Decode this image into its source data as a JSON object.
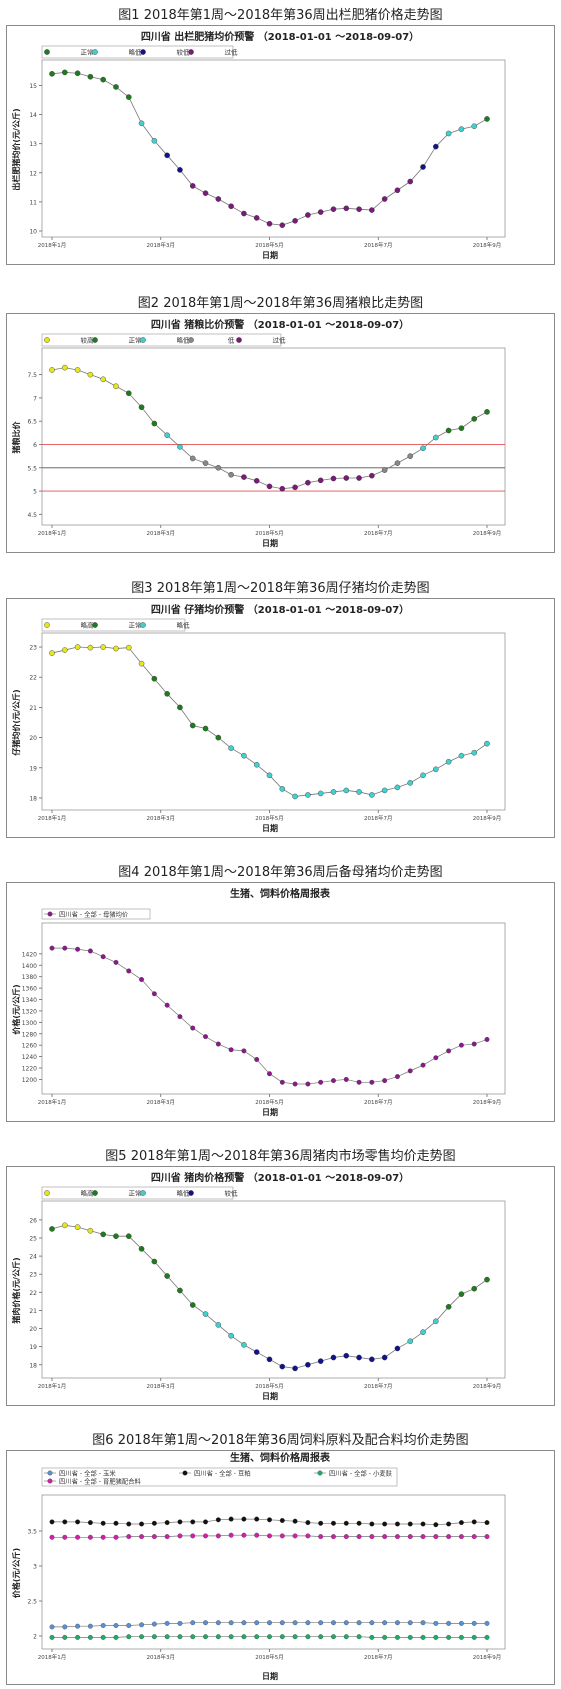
{
  "figures": [
    {
      "caption": "图1  2018年第1周～2018年第36周出栏肥猪价格走势图",
      "subtitle": "四川省 出栏肥猪均价预警 （2018-01-01 ～2018-09-07）"
    },
    {
      "caption": "图2  2018年第1周～2018年第36周猪粮比走势图",
      "subtitle": "四川省 猪粮比价预警 （2018-01-01 ～2018-09-07）"
    },
    {
      "caption": "图3  2018年第1周～2018年第36周仔猪均价走势图",
      "subtitle": "四川省 仔猪均价预警 （2018-01-01 ～2018-09-07）"
    },
    {
      "caption": "图4  2018年第1周～2018年第36周后备母猪均价走势图",
      "subtitle": "生猪、饲料价格周报表"
    },
    {
      "caption": "图5 2018年第1周～2018年第36周猪肉市场零售均价走势图",
      "subtitle": "四川省 猪肉价格预警 （2018-01-01 ～2018-09-07）"
    },
    {
      "caption": "图6  2018年第1周～2018年第36周饲料原料及配合料均价走势图",
      "subtitle": "生猪、饲料价格周报表"
    }
  ],
  "colors": {
    "正常": "#1e7b1e",
    "略低": "#40d0d0",
    "较低": "#12128c",
    "过低": "#7a1a7a",
    "较高": "#e6e61e",
    "略高": "#e6e61e",
    "母猪": "#8a1a8a",
    "玉米": "#5a8fd0",
    "豆粕": "#111111",
    "小麦麸": "#22aa66",
    "配合料": "#cc22aa",
    "line": "#777777",
    "redline": "#e05050",
    "grayline": "#555555"
  },
  "chart_data": [
    {
      "type": "line",
      "title": "四川省 出栏肥猪均价预警 （2018-01-01 ～2018-09-07）",
      "xlabel": "日期",
      "ylabel": "出栏肥猪均价(元/公斤)",
      "ylim": [
        10,
        15.6
      ],
      "yticks": [
        10,
        11,
        12,
        13,
        14,
        15
      ],
      "xticks": [
        "2018年1月",
        "2018年3月",
        "2018年5月",
        "2018年7月",
        "2018年9月"
      ],
      "legend": [
        "正常",
        "略低",
        "较低",
        "过低"
      ],
      "values": [
        15.4,
        15.45,
        15.42,
        15.3,
        15.2,
        14.95,
        14.6,
        13.7,
        13.1,
        12.6,
        12.1,
        11.55,
        11.3,
        11.1,
        10.85,
        10.6,
        10.45,
        10.25,
        10.2,
        10.35,
        10.55,
        10.65,
        10.75,
        10.78,
        10.75,
        10.72,
        11.1,
        11.4,
        11.7,
        12.2,
        12.9,
        13.35,
        13.5,
        13.6,
        13.85
      ],
      "levels": [
        "正常",
        "正常",
        "正常",
        "正常",
        "正常",
        "正常",
        "正常",
        "略低",
        "略低",
        "较低",
        "较低",
        "过低",
        "过低",
        "过低",
        "过低",
        "过低",
        "过低",
        "过低",
        "过低",
        "过低",
        "过低",
        "过低",
        "过低",
        "过低",
        "过低",
        "过低",
        "过低",
        "过低",
        "过低",
        "较低",
        "较低",
        "略低",
        "略低",
        "略低",
        "正常"
      ]
    },
    {
      "type": "line",
      "title": "四川省 猪粮比价预警 （2018-01-01 ～2018-09-07）",
      "xlabel": "日期",
      "ylabel": "猪粮比价",
      "ylim": [
        4.4,
        7.9
      ],
      "yticks": [
        4.5,
        5.0,
        5.5,
        6.0,
        6.5,
        7.0,
        7.5
      ],
      "xticks": [
        "2018年1月",
        "2018年3月",
        "2018年5月",
        "2018年7月",
        "2018年9月"
      ],
      "legend": [
        "较高",
        "正常",
        "略低",
        "低",
        "过低"
      ],
      "hlines": [
        5.5,
        6.0,
        5.0
      ],
      "values": [
        7.6,
        7.65,
        7.6,
        7.5,
        7.4,
        7.25,
        7.1,
        6.8,
        6.45,
        6.2,
        5.95,
        5.7,
        5.6,
        5.5,
        5.35,
        5.3,
        5.22,
        5.1,
        5.05,
        5.08,
        5.18,
        5.23,
        5.27,
        5.28,
        5.28,
        5.33,
        5.45,
        5.6,
        5.75,
        5.92,
        6.15,
        6.3,
        6.35,
        6.55,
        6.7
      ],
      "levels": [
        "较高",
        "较高",
        "较高",
        "较高",
        "较高",
        "较高",
        "正常",
        "正常",
        "正常",
        "略低",
        "略低",
        "低",
        "低",
        "低",
        "低",
        "过低",
        "过低",
        "过低",
        "过低",
        "过低",
        "过低",
        "过低",
        "过低",
        "过低",
        "过低",
        "过低",
        "低",
        "低",
        "低",
        "略低",
        "略低",
        "正常",
        "正常",
        "正常",
        "正常"
      ]
    },
    {
      "type": "line",
      "title": "四川省 仔猪均价预警 （2018-01-01 ～2018-09-07）",
      "xlabel": "日期",
      "ylabel": "仔猪均价(元/公斤)",
      "ylim": [
        17.8,
        23.2
      ],
      "yticks": [
        18,
        19,
        20,
        21,
        22,
        23
      ],
      "xticks": [
        "2018年1月",
        "2018年3月",
        "2018年5月",
        "2018年7月",
        "2018年9月"
      ],
      "legend": [
        "略高",
        "正常",
        "略低"
      ],
      "values": [
        22.8,
        22.9,
        23.0,
        22.98,
        23.0,
        22.95,
        22.98,
        22.45,
        21.95,
        21.45,
        21.0,
        20.4,
        20.3,
        20.0,
        19.65,
        19.4,
        19.1,
        18.75,
        18.3,
        18.05,
        18.1,
        18.15,
        18.2,
        18.25,
        18.2,
        18.1,
        18.25,
        18.35,
        18.5,
        18.75,
        18.95,
        19.2,
        19.4,
        19.5,
        19.8
      ],
      "levels": [
        "略高",
        "略高",
        "略高",
        "略高",
        "略高",
        "略高",
        "略高",
        "略高",
        "正常",
        "正常",
        "正常",
        "正常",
        "正常",
        "正常",
        "略低",
        "略低",
        "略低",
        "略低",
        "略低",
        "略低",
        "略低",
        "略低",
        "略低",
        "略低",
        "略低",
        "略低",
        "略低",
        "略低",
        "略低",
        "略低",
        "略低",
        "略低",
        "略低",
        "略低",
        "略低"
      ]
    },
    {
      "type": "line",
      "title": "生猪、饲料价格周报表",
      "xlabel": "日期",
      "ylabel": "价格(元/公斤)",
      "ylim": [
        1185,
        1460
      ],
      "yticks": [
        1200,
        1220,
        1240,
        1260,
        1280,
        1300,
        1320,
        1340,
        1360,
        1380,
        1400,
        1420
      ],
      "xticks": [
        "2018年1月",
        "2018年3月",
        "2018年5月",
        "2018年7月",
        "2018年9月"
      ],
      "series": [
        {
          "name": "四川省 - 全部 - 母猪均价",
          "values": [
            1430,
            1430,
            1428,
            1425,
            1415,
            1405,
            1390,
            1375,
            1350,
            1330,
            1310,
            1290,
            1275,
            1262,
            1252,
            1250,
            1235,
            1210,
            1195,
            1192,
            1192,
            1195,
            1198,
            1200,
            1195,
            1195,
            1198,
            1205,
            1215,
            1225,
            1238,
            1250,
            1260,
            1262,
            1270
          ]
        }
      ]
    },
    {
      "type": "line",
      "title": "四川省 猪肉价格预警 （2018-01-01 ～2018-09-07）",
      "xlabel": "日期",
      "ylabel": "猪肉价格(元/公斤)",
      "ylim": [
        17.6,
        26.6
      ],
      "yticks": [
        18,
        19,
        20,
        21,
        22,
        23,
        24,
        25,
        26
      ],
      "xticks": [
        "2018年1月",
        "2018年3月",
        "2018年5月",
        "2018年7月",
        "2018年9月"
      ],
      "legend": [
        "略高",
        "正常",
        "略低",
        "较低"
      ],
      "values": [
        25.5,
        25.7,
        25.6,
        25.4,
        25.2,
        25.1,
        25.1,
        24.4,
        23.7,
        22.9,
        22.1,
        21.3,
        20.8,
        20.2,
        19.6,
        19.1,
        18.7,
        18.3,
        17.9,
        17.8,
        18.0,
        18.2,
        18.4,
        18.5,
        18.4,
        18.3,
        18.4,
        18.9,
        19.3,
        19.8,
        20.4,
        21.2,
        21.9,
        22.2,
        22.7
      ],
      "levels": [
        "正常",
        "略高",
        "略高",
        "略高",
        "正常",
        "正常",
        "正常",
        "正常",
        "正常",
        "正常",
        "正常",
        "正常",
        "略低",
        "略低",
        "略低",
        "略低",
        "较低",
        "较低",
        "较低",
        "较低",
        "较低",
        "较低",
        "较低",
        "较低",
        "较低",
        "较低",
        "较低",
        "较低",
        "略低",
        "略低",
        "略低",
        "正常",
        "正常",
        "正常",
        "正常"
      ]
    },
    {
      "type": "line",
      "title": "生猪、饲料价格周报表",
      "xlabel": "日期",
      "ylabel": "价格(元/公斤)",
      "ylim": [
        1.9,
        3.9
      ],
      "yticks": [
        2.0,
        2.5,
        3.0,
        3.5
      ],
      "xticks": [
        "2018年1月",
        "2018年3月",
        "2018年5月",
        "2018年7月",
        "2018年9月"
      ],
      "series": [
        {
          "name": "四川省 - 全部 - 玉米",
          "values": [
            2.13,
            2.13,
            2.14,
            2.14,
            2.15,
            2.15,
            2.15,
            2.16,
            2.17,
            2.18,
            2.18,
            2.19,
            2.19,
            2.19,
            2.19,
            2.19,
            2.19,
            2.19,
            2.19,
            2.19,
            2.19,
            2.19,
            2.19,
            2.19,
            2.19,
            2.19,
            2.19,
            2.19,
            2.19,
            2.19,
            2.18,
            2.18,
            2.18,
            2.18,
            2.18
          ]
        },
        {
          "name": "四川省 - 全部 - 豆粕",
          "values": [
            3.63,
            3.63,
            3.63,
            3.62,
            3.61,
            3.61,
            3.6,
            3.6,
            3.61,
            3.62,
            3.63,
            3.63,
            3.63,
            3.66,
            3.67,
            3.67,
            3.67,
            3.66,
            3.65,
            3.64,
            3.62,
            3.61,
            3.61,
            3.61,
            3.61,
            3.6,
            3.6,
            3.6,
            3.6,
            3.6,
            3.59,
            3.6,
            3.62,
            3.63,
            3.62
          ]
        },
        {
          "name": "四川省 - 全部 - 小麦麸",
          "values": [
            1.98,
            1.98,
            1.98,
            1.98,
            1.98,
            1.98,
            1.99,
            1.99,
            1.99,
            1.99,
            1.99,
            1.99,
            1.99,
            1.99,
            1.99,
            1.99,
            1.99,
            1.99,
            1.99,
            1.99,
            1.99,
            1.99,
            1.99,
            1.99,
            1.99,
            1.98,
            1.98,
            1.98,
            1.98,
            1.98,
            1.98,
            1.98,
            1.98,
            1.98,
            1.98
          ]
        },
        {
          "name": "四川省 - 全部 - 育肥猪配合料",
          "values": [
            3.41,
            3.41,
            3.41,
            3.41,
            3.41,
            3.41,
            3.42,
            3.42,
            3.42,
            3.42,
            3.43,
            3.43,
            3.43,
            3.43,
            3.44,
            3.44,
            3.44,
            3.43,
            3.43,
            3.43,
            3.43,
            3.42,
            3.42,
            3.42,
            3.42,
            3.42,
            3.42,
            3.42,
            3.42,
            3.42,
            3.42,
            3.42,
            3.42,
            3.42,
            3.42
          ]
        }
      ]
    }
  ]
}
